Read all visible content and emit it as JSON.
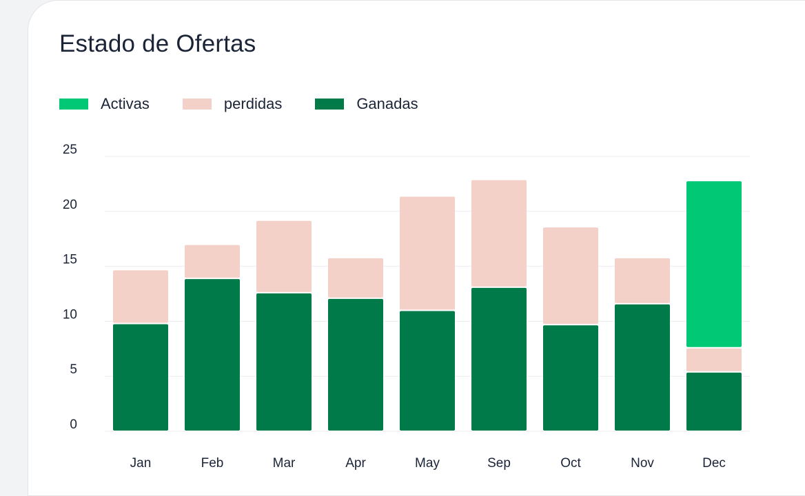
{
  "title": "Estado de Ofertas",
  "colors": {
    "activas": "#00c875",
    "perdidas": "#f3d1c8",
    "ganadas": "#007a48",
    "grid": "#ececee"
  },
  "chart_data": {
    "type": "bar",
    "stacked": true,
    "title": "Estado de Ofertas",
    "xlabel": "",
    "ylabel": "",
    "categories": [
      "Jan",
      "Feb",
      "Mar",
      "Apr",
      "May",
      "Sep",
      "Oct",
      "Nov",
      "Dec"
    ],
    "series": [
      {
        "name": "Ganadas",
        "values": [
          9.8,
          13.9,
          12.6,
          12.1,
          11.0,
          13.1,
          9.7,
          11.6,
          5.4
        ]
      },
      {
        "name": "perdidas",
        "values": [
          4.9,
          3.1,
          6.6,
          3.7,
          10.4,
          9.8,
          8.9,
          4.2,
          2.2
        ]
      },
      {
        "name": "Activas",
        "values": [
          0,
          0,
          0,
          0,
          0,
          0,
          0,
          0,
          15.2
        ]
      }
    ],
    "legend_order": [
      "Activas",
      "perdidas",
      "Ganadas"
    ],
    "yticks": [
      0,
      5,
      10,
      15,
      20,
      25
    ],
    "ylim": [
      0,
      25
    ],
    "grid": true,
    "legend_position": "top-left"
  }
}
